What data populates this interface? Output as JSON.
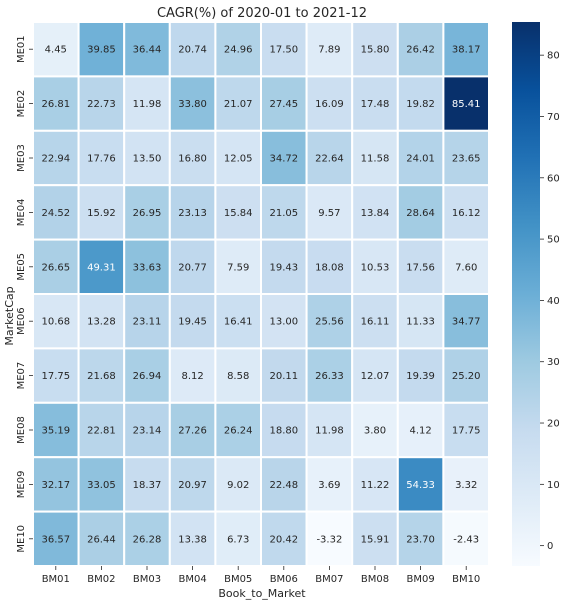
{
  "chart_data": {
    "type": "heatmap",
    "title": "CAGR(%) of 2020-01 to 2021-12",
    "xlabel": "Book_to_Market",
    "ylabel": "MarketCap",
    "x_categories": [
      "BM01",
      "BM02",
      "BM03",
      "BM04",
      "BM05",
      "BM06",
      "BM07",
      "BM08",
      "BM09",
      "BM10"
    ],
    "y_categories": [
      "ME01",
      "ME02",
      "ME03",
      "ME04",
      "ME05",
      "ME06",
      "ME07",
      "ME08",
      "ME09",
      "ME10"
    ],
    "values": [
      [
        4.45,
        39.85,
        36.44,
        20.74,
        24.96,
        17.5,
        7.89,
        15.8,
        26.42,
        38.17
      ],
      [
        26.81,
        22.73,
        11.98,
        33.8,
        21.07,
        27.45,
        16.09,
        17.48,
        19.82,
        85.41
      ],
      [
        22.94,
        17.76,
        13.5,
        16.8,
        12.05,
        34.72,
        22.64,
        11.58,
        24.01,
        23.65
      ],
      [
        24.52,
        15.92,
        26.95,
        23.13,
        15.84,
        21.05,
        9.57,
        13.84,
        28.64,
        16.12
      ],
      [
        26.65,
        49.31,
        33.63,
        20.77,
        7.59,
        19.43,
        18.08,
        10.53,
        17.56,
        7.6
      ],
      [
        10.68,
        13.28,
        23.11,
        19.45,
        16.41,
        13.0,
        25.56,
        16.11,
        11.33,
        34.77
      ],
      [
        17.75,
        21.68,
        26.94,
        8.12,
        8.58,
        20.11,
        26.33,
        12.07,
        19.39,
        25.2
      ],
      [
        35.19,
        22.81,
        23.14,
        27.26,
        26.24,
        18.8,
        11.98,
        3.8,
        4.12,
        17.75
      ],
      [
        32.17,
        33.05,
        18.37,
        20.97,
        9.02,
        22.48,
        3.69,
        11.22,
        54.33,
        3.32
      ],
      [
        36.57,
        26.44,
        26.28,
        13.38,
        6.73,
        20.42,
        -3.32,
        15.91,
        23.7,
        -2.43
      ]
    ],
    "value_format": "2 decimals",
    "colormap": "Blues",
    "color_range": [
      -3.32,
      85.41
    ],
    "colorbar_ticks": [
      0,
      10,
      20,
      30,
      40,
      50,
      60,
      70,
      80
    ],
    "cell_border_color": "#ffffff",
    "grid": false
  }
}
